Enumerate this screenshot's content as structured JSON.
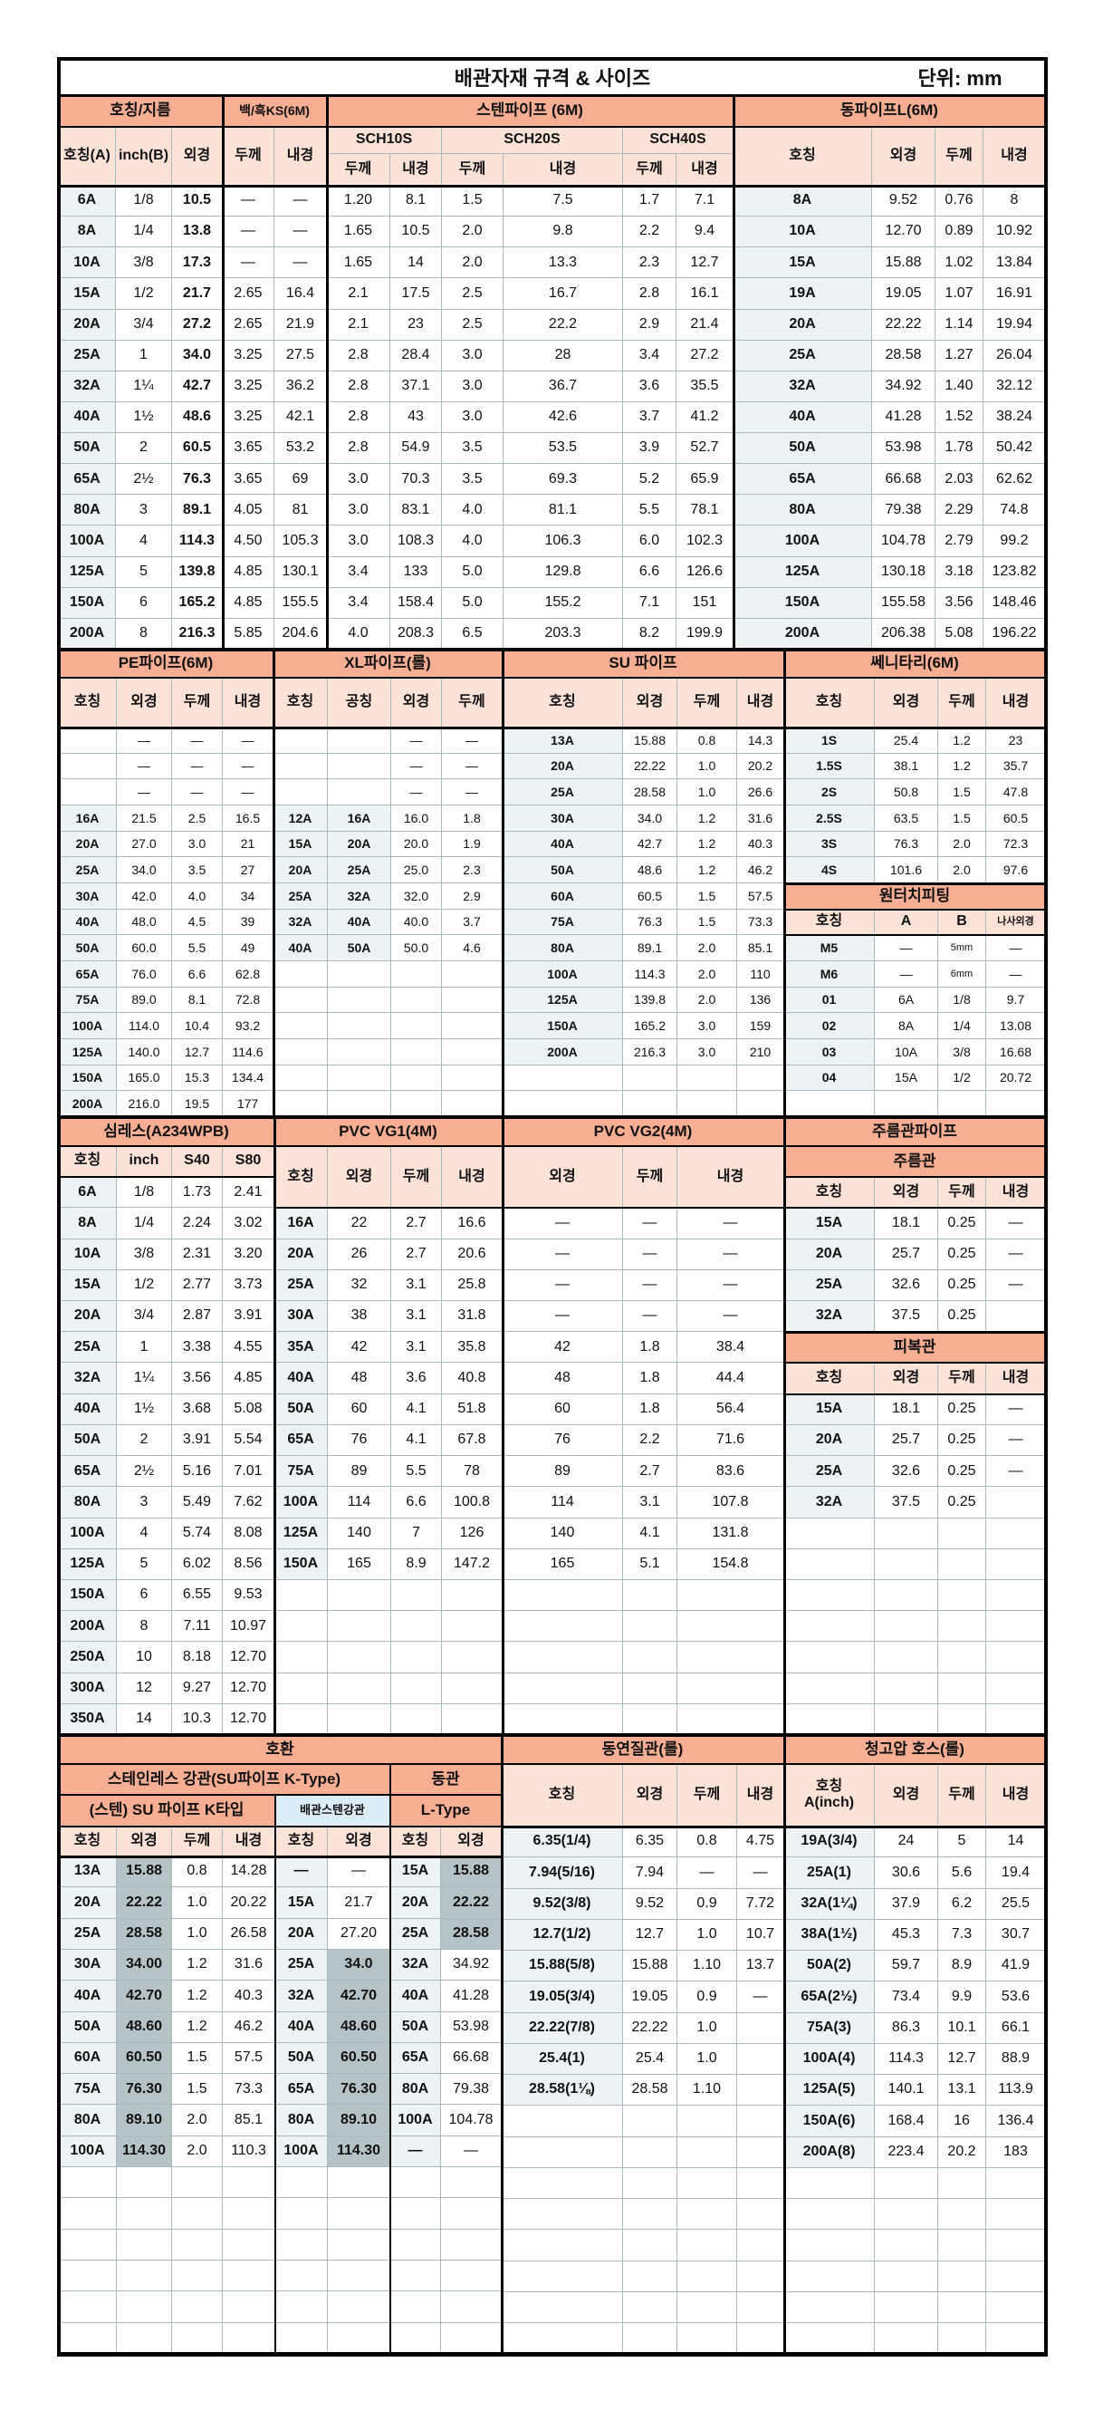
{
  "title": "배관자재 규격 & 사이즈",
  "unit": "단위: mm",
  "colors": {
    "section_header": "#f8ae92",
    "column_header": "#fde2d8",
    "name_column": "#edf2f4",
    "highlight": "#b6c3c6",
    "steel_label": "#dcedf8"
  },
  "s1": {
    "group_name": "호칭/지름",
    "group_ks": "백/흑KS(6M)",
    "group_sten": "스텐파이프 (6M)",
    "cols_name": [
      "호칭(A)",
      "inch(B)",
      "외경"
    ],
    "cols_ks": [
      "두께",
      "내경"
    ],
    "sch": [
      "SCH10S",
      "SCH20S",
      "SCH40S"
    ],
    "sch_cols": [
      "두께",
      "내경",
      "두께",
      "내경",
      "두께",
      "내경"
    ],
    "rows": [
      [
        "6A",
        "1/8",
        "10.5",
        "—",
        "—",
        "1.20",
        "8.1",
        "1.5",
        "7.5",
        "1.7",
        "7.1"
      ],
      [
        "8A",
        "1/4",
        "13.8",
        "—",
        "—",
        "1.65",
        "10.5",
        "2.0",
        "9.8",
        "2.2",
        "9.4"
      ],
      [
        "10A",
        "3/8",
        "17.3",
        "—",
        "—",
        "1.65",
        "14",
        "2.0",
        "13.3",
        "2.3",
        "12.7"
      ],
      [
        "15A",
        "1/2",
        "21.7",
        "2.65",
        "16.4",
        "2.1",
        "17.5",
        "2.5",
        "16.7",
        "2.8",
        "16.1"
      ],
      [
        "20A",
        "3/4",
        "27.2",
        "2.65",
        "21.9",
        "2.1",
        "23",
        "2.5",
        "22.2",
        "2.9",
        "21.4"
      ],
      [
        "25A",
        "1",
        "34.0",
        "3.25",
        "27.5",
        "2.8",
        "28.4",
        "3.0",
        "28",
        "3.4",
        "27.2"
      ],
      [
        "32A",
        "1¼",
        "42.7",
        "3.25",
        "36.2",
        "2.8",
        "37.1",
        "3.0",
        "36.7",
        "3.6",
        "35.5"
      ],
      [
        "40A",
        "1½",
        "48.6",
        "3.25",
        "42.1",
        "2.8",
        "43",
        "3.0",
        "42.6",
        "3.7",
        "41.2"
      ],
      [
        "50A",
        "2",
        "60.5",
        "3.65",
        "53.2",
        "2.8",
        "54.9",
        "3.5",
        "53.5",
        "3.9",
        "52.7"
      ],
      [
        "65A",
        "2½",
        "76.3",
        "3.65",
        "69",
        "3.0",
        "70.3",
        "3.5",
        "69.3",
        "5.2",
        "65.9"
      ],
      [
        "80A",
        "3",
        "89.1",
        "4.05",
        "81",
        "3.0",
        "83.1",
        "4.0",
        "81.1",
        "5.5",
        "78.1"
      ],
      [
        "100A",
        "4",
        "114.3",
        "4.50",
        "105.3",
        "3.0",
        "108.3",
        "4.0",
        "106.3",
        "6.0",
        "102.3"
      ],
      [
        "125A",
        "5",
        "139.8",
        "4.85",
        "130.1",
        "3.4",
        "133",
        "5.0",
        "129.8",
        "6.6",
        "126.6"
      ],
      [
        "150A",
        "6",
        "165.2",
        "4.85",
        "155.5",
        "3.4",
        "158.4",
        "5.0",
        "155.2",
        "7.1",
        "151"
      ],
      [
        "200A",
        "8",
        "216.3",
        "5.85",
        "204.6",
        "4.0",
        "208.3",
        "6.5",
        "203.3",
        "8.2",
        "199.9"
      ]
    ]
  },
  "copper": {
    "title": "동파이프L(6M)",
    "cols": [
      "호칭",
      "외경",
      "두께",
      "내경"
    ],
    "rows": [
      [
        "8A",
        "9.52",
        "0.76",
        "8"
      ],
      [
        "10A",
        "12.70",
        "0.89",
        "10.92"
      ],
      [
        "15A",
        "15.88",
        "1.02",
        "13.84"
      ],
      [
        "19A",
        "19.05",
        "1.07",
        "16.91"
      ],
      [
        "20A",
        "22.22",
        "1.14",
        "19.94"
      ],
      [
        "25A",
        "28.58",
        "1.27",
        "26.04"
      ],
      [
        "32A",
        "34.92",
        "1.40",
        "32.12"
      ],
      [
        "40A",
        "41.28",
        "1.52",
        "38.24"
      ],
      [
        "50A",
        "53.98",
        "1.78",
        "50.42"
      ],
      [
        "65A",
        "66.68",
        "2.03",
        "62.62"
      ],
      [
        "80A",
        "79.38",
        "2.29",
        "74.8"
      ],
      [
        "100A",
        "104.78",
        "2.79",
        "99.2"
      ],
      [
        "125A",
        "130.18",
        "3.18",
        "123.82"
      ],
      [
        "150A",
        "155.58",
        "3.56",
        "148.46"
      ],
      [
        "200A",
        "206.38",
        "5.08",
        "196.22"
      ]
    ]
  },
  "pe": {
    "title": "PE파이프(6M)",
    "cols": [
      "호칭",
      "외경",
      "두께",
      "내경"
    ],
    "rows": [
      [
        "",
        "—",
        "—",
        "—"
      ],
      [
        "",
        "—",
        "—",
        "—"
      ],
      [
        "",
        "—",
        "—",
        "—"
      ],
      [
        "16A",
        "21.5",
        "2.5",
        "16.5"
      ],
      [
        "20A",
        "27.0",
        "3.0",
        "21"
      ],
      [
        "25A",
        "34.0",
        "3.5",
        "27"
      ],
      [
        "30A",
        "42.0",
        "4.0",
        "34"
      ],
      [
        "40A",
        "48.0",
        "4.5",
        "39"
      ],
      [
        "50A",
        "60.0",
        "5.5",
        "49"
      ],
      [
        "65A",
        "76.0",
        "6.6",
        "62.8"
      ],
      [
        "75A",
        "89.0",
        "8.1",
        "72.8"
      ],
      [
        "100A",
        "114.0",
        "10.4",
        "93.2"
      ],
      [
        "125A",
        "140.0",
        "12.7",
        "114.6"
      ],
      [
        "150A",
        "165.0",
        "15.3",
        "134.4"
      ],
      [
        "200A",
        "216.0",
        "19.5",
        "177"
      ]
    ]
  },
  "xl": {
    "title": "XL파이프(롤)",
    "cols": [
      "호칭",
      "공칭",
      "외경",
      "두께"
    ],
    "rows": [
      [
        "",
        "",
        "—",
        "—"
      ],
      [
        "",
        "",
        "—",
        "—"
      ],
      [
        "",
        "",
        "—",
        "—"
      ],
      [
        "12A",
        "16A",
        "16.0",
        "1.8"
      ],
      [
        "15A",
        "20A",
        "20.0",
        "1.9"
      ],
      [
        "20A",
        "25A",
        "25.0",
        "2.3"
      ],
      [
        "25A",
        "32A",
        "32.0",
        "2.9"
      ],
      [
        "32A",
        "40A",
        "40.0",
        "3.7"
      ],
      [
        "40A",
        "50A",
        "50.0",
        "4.6"
      ]
    ]
  },
  "su": {
    "title": "SU 파이프",
    "cols": [
      "호칭",
      "외경",
      "두께",
      "내경"
    ],
    "rows": [
      [
        "13A",
        "15.88",
        "0.8",
        "14.3"
      ],
      [
        "20A",
        "22.22",
        "1.0",
        "20.2"
      ],
      [
        "25A",
        "28.58",
        "1.0",
        "26.6"
      ],
      [
        "30A",
        "34.0",
        "1.2",
        "31.6"
      ],
      [
        "40A",
        "42.7",
        "1.2",
        "40.3"
      ],
      [
        "50A",
        "48.6",
        "1.2",
        "46.2"
      ],
      [
        "60A",
        "60.5",
        "1.5",
        "57.5"
      ],
      [
        "75A",
        "76.3",
        "1.5",
        "73.3"
      ],
      [
        "80A",
        "89.1",
        "2.0",
        "85.1"
      ],
      [
        "100A",
        "114.3",
        "2.0",
        "110"
      ],
      [
        "125A",
        "139.8",
        "2.0",
        "136"
      ],
      [
        "150A",
        "165.2",
        "3.0",
        "159"
      ],
      [
        "200A",
        "216.3",
        "3.0",
        "210"
      ]
    ]
  },
  "sanitary": {
    "title": "쎄니타리(6M)",
    "cols": [
      "호칭",
      "외경",
      "두께",
      "내경"
    ],
    "rows": [
      [
        "1S",
        "25.4",
        "1.2",
        "23"
      ],
      [
        "1.5S",
        "38.1",
        "1.2",
        "35.7"
      ],
      [
        "2S",
        "50.8",
        "1.5",
        "47.8"
      ],
      [
        "2.5S",
        "63.5",
        "1.5",
        "60.5"
      ],
      [
        "3S",
        "76.3",
        "2.0",
        "72.3"
      ],
      [
        "4S",
        "101.6",
        "2.0",
        "97.6"
      ]
    ]
  },
  "onetouch": {
    "title": "원터치피팅",
    "cols": [
      "호칭",
      "A",
      "B",
      "나사외경"
    ],
    "rows": [
      [
        "M5",
        "—",
        "5mm",
        "—"
      ],
      [
        "M6",
        "—",
        "6mm",
        "—"
      ],
      [
        "01",
        "6A",
        "1/8",
        "9.7"
      ],
      [
        "02",
        "8A",
        "1/4",
        "13.08"
      ],
      [
        "03",
        "10A",
        "3/8",
        "16.68"
      ],
      [
        "04",
        "15A",
        "1/2",
        "20.72"
      ]
    ]
  },
  "seamless": {
    "title": "심레스(A234WPB)",
    "cols": [
      "호칭",
      "inch",
      "S40",
      "S80"
    ],
    "rows": [
      [
        "6A",
        "1/8",
        "1.73",
        "2.41"
      ],
      [
        "8A",
        "1/4",
        "2.24",
        "3.02"
      ],
      [
        "10A",
        "3/8",
        "2.31",
        "3.20"
      ],
      [
        "15A",
        "1/2",
        "2.77",
        "3.73"
      ],
      [
        "20A",
        "3/4",
        "2.87",
        "3.91"
      ],
      [
        "25A",
        "1",
        "3.38",
        "4.55"
      ],
      [
        "32A",
        "1¼",
        "3.56",
        "4.85"
      ],
      [
        "40A",
        "1½",
        "3.68",
        "5.08"
      ],
      [
        "50A",
        "2",
        "3.91",
        "5.54"
      ],
      [
        "65A",
        "2½",
        "5.16",
        "7.01"
      ],
      [
        "80A",
        "3",
        "5.49",
        "7.62"
      ],
      [
        "100A",
        "4",
        "5.74",
        "8.08"
      ],
      [
        "125A",
        "5",
        "6.02",
        "8.56"
      ],
      [
        "150A",
        "6",
        "6.55",
        "9.53"
      ],
      [
        "200A",
        "8",
        "7.11",
        "10.97"
      ],
      [
        "250A",
        "10",
        "8.18",
        "12.70"
      ],
      [
        "300A",
        "12",
        "9.27",
        "12.70"
      ],
      [
        "350A",
        "14",
        "10.3",
        "12.70"
      ]
    ]
  },
  "vg1": {
    "title": "PVC VG1(4M)",
    "cols": [
      "호칭",
      "외경",
      "두께",
      "내경"
    ],
    "rows": [
      [
        "16A",
        "22",
        "2.7",
        "16.6"
      ],
      [
        "20A",
        "26",
        "2.7",
        "20.6"
      ],
      [
        "25A",
        "32",
        "3.1",
        "25.8"
      ],
      [
        "30A",
        "38",
        "3.1",
        "31.8"
      ],
      [
        "35A",
        "42",
        "3.1",
        "35.8"
      ],
      [
        "40A",
        "48",
        "3.6",
        "40.8"
      ],
      [
        "50A",
        "60",
        "4.1",
        "51.8"
      ],
      [
        "65A",
        "76",
        "4.1",
        "67.8"
      ],
      [
        "75A",
        "89",
        "5.5",
        "78"
      ],
      [
        "100A",
        "114",
        "6.6",
        "100.8"
      ],
      [
        "125A",
        "140",
        "7",
        "126"
      ],
      [
        "150A",
        "165",
        "8.9",
        "147.2"
      ]
    ]
  },
  "vg2": {
    "title": "PVC VG2(4M)",
    "cols": [
      "외경",
      "두께",
      "내경"
    ],
    "rows": [
      [
        "—",
        "—",
        "—"
      ],
      [
        "—",
        "—",
        "—"
      ],
      [
        "—",
        "—",
        "—"
      ],
      [
        "—",
        "—",
        "—"
      ],
      [
        "42",
        "1.8",
        "38.4"
      ],
      [
        "48",
        "1.8",
        "44.4"
      ],
      [
        "60",
        "1.8",
        "56.4"
      ],
      [
        "76",
        "2.2",
        "71.6"
      ],
      [
        "89",
        "2.7",
        "83.6"
      ],
      [
        "114",
        "3.1",
        "107.8"
      ],
      [
        "140",
        "4.1",
        "131.8"
      ],
      [
        "165",
        "5.1",
        "154.8"
      ]
    ]
  },
  "flex": {
    "title": "주름관파이프",
    "sub1": "주름관",
    "cols1": [
      "호칭",
      "외경",
      "두께",
      "내경"
    ],
    "rows1": [
      [
        "15A",
        "18.1",
        "0.25",
        "—"
      ],
      [
        "20A",
        "25.7",
        "0.25",
        "—"
      ],
      [
        "25A",
        "32.6",
        "0.25",
        "—"
      ],
      [
        "32A",
        "37.5",
        "0.25",
        ""
      ]
    ],
    "sub2": "피복관",
    "cols2": [
      "호칭",
      "외경",
      "두께",
      "내경"
    ],
    "rows2": [
      [
        "15A",
        "18.1",
        "0.25",
        "—"
      ],
      [
        "20A",
        "25.7",
        "0.25",
        "—"
      ],
      [
        "25A",
        "32.6",
        "0.25",
        "—"
      ],
      [
        "32A",
        "37.5",
        "0.25",
        ""
      ]
    ]
  },
  "compat": {
    "title": "호환",
    "stainless": "스테인레스 강관(SU파이프 K-Type)",
    "copper": "동관",
    "su_k": "(스텐) SU 파이프 K타입",
    "steel": "배관스텐강관",
    "ltype": "L-Type",
    "cols": [
      "호칭",
      "외경",
      "두께",
      "내경",
      "호칭",
      "외경",
      "호칭",
      "외경"
    ],
    "rows": [
      [
        "13A",
        "15.88",
        "0.8",
        "14.28",
        "—",
        "—",
        "15A",
        "15.88"
      ],
      [
        "20A",
        "22.22",
        "1.0",
        "20.22",
        "15A",
        "21.7",
        "20A",
        "22.22"
      ],
      [
        "25A",
        "28.58",
        "1.0",
        "26.58",
        "20A",
        "27.20",
        "25A",
        "28.58"
      ],
      [
        "30A",
        "34.00",
        "1.2",
        "31.6",
        "25A",
        "34.0",
        "32A",
        "34.92"
      ],
      [
        "40A",
        "42.70",
        "1.2",
        "40.3",
        "32A",
        "42.70",
        "40A",
        "41.28"
      ],
      [
        "50A",
        "48.60",
        "1.2",
        "46.2",
        "40A",
        "48.60",
        "50A",
        "53.98"
      ],
      [
        "60A",
        "60.50",
        "1.5",
        "57.5",
        "50A",
        "60.50",
        "65A",
        "66.68"
      ],
      [
        "75A",
        "76.30",
        "1.5",
        "73.3",
        "65A",
        "76.30",
        "80A",
        "79.38"
      ],
      [
        "80A",
        "89.10",
        "2.0",
        "85.1",
        "80A",
        "89.10",
        "100A",
        "104.78"
      ],
      [
        "100A",
        "114.30",
        "2.0",
        "110.3",
        "100A",
        "114.30",
        "—",
        "—"
      ]
    ]
  },
  "soft_copper": {
    "title": "동연질관(롤)",
    "cols": [
      "호칭",
      "외경",
      "두께",
      "내경"
    ],
    "rows": [
      [
        "6.35(1/4)",
        "6.35",
        "0.8",
        "4.75"
      ],
      [
        "7.94(5/16)",
        "7.94",
        "—",
        "—"
      ],
      [
        "9.52(3/8)",
        "9.52",
        "0.9",
        "7.72"
      ],
      [
        "12.7(1/2)",
        "12.7",
        "1.0",
        "10.7"
      ],
      [
        "15.88(5/8)",
        "15.88",
        "1.10",
        "13.7"
      ],
      [
        "19.05(3/4)",
        "19.05",
        "0.9",
        "—"
      ],
      [
        "22.22(7/8)",
        "22.22",
        "1.0",
        ""
      ],
      [
        "25.4(1)",
        "25.4",
        "1.0",
        ""
      ],
      [
        "28.58(1⅛)",
        "28.58",
        "1.10",
        ""
      ]
    ]
  },
  "hose": {
    "title": "청고압 호스(롤)",
    "cols": [
      "호칭\nA(inch)",
      "외경",
      "두께",
      "내경"
    ],
    "rows": [
      [
        "19A(3/4)",
        "24",
        "5",
        "14"
      ],
      [
        "25A(1)",
        "30.6",
        "5.6",
        "19.4"
      ],
      [
        "32A(1¼)",
        "37.9",
        "6.2",
        "25.5"
      ],
      [
        "38A(1½)",
        "45.3",
        "7.3",
        "30.7"
      ],
      [
        "50A(2)",
        "59.7",
        "8.9",
        "41.9"
      ],
      [
        "65A(2½)",
        "73.4",
        "9.9",
        "53.6"
      ],
      [
        "75A(3)",
        "86.3",
        "10.1",
        "66.1"
      ],
      [
        "100A(4)",
        "114.3",
        "12.7",
        "88.9"
      ],
      [
        "125A(5)",
        "140.1",
        "13.1",
        "113.9"
      ],
      [
        "150A(6)",
        "168.4",
        "16",
        "136.4"
      ],
      [
        "200A(8)",
        "223.4",
        "20.2",
        "183"
      ]
    ]
  }
}
